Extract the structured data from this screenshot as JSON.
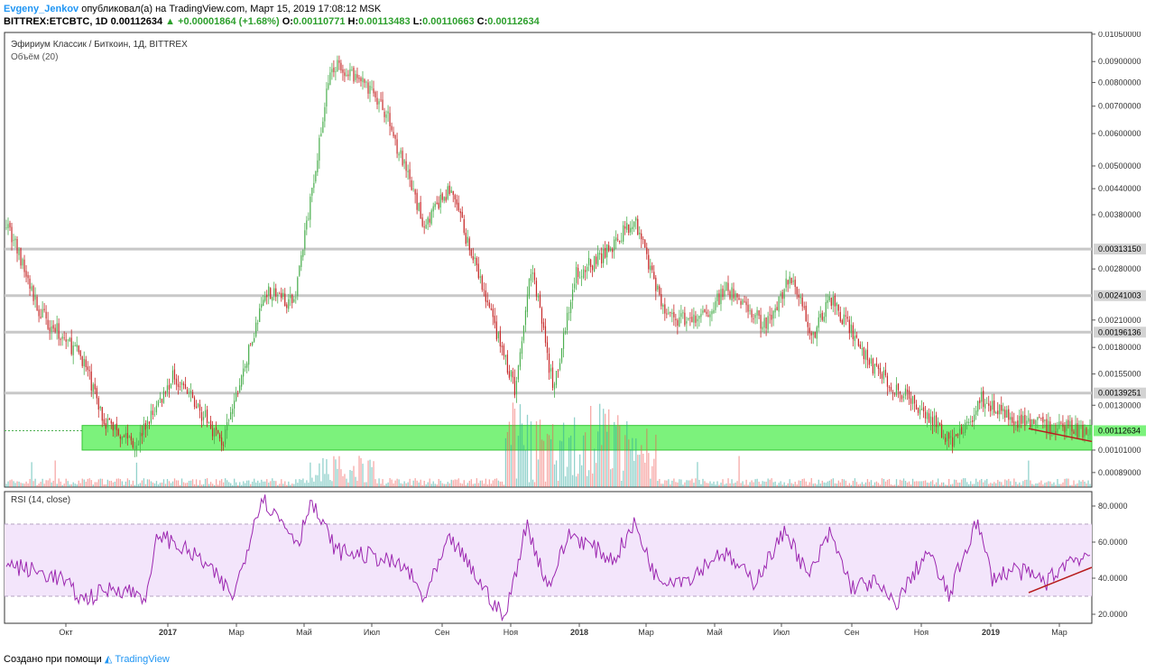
{
  "header": {
    "author": "Evgeny_Jenkov",
    "published_text": "опубликовал(а) на TradingView.com, Март 15, 2019 17:08:12 MSK"
  },
  "ticker": {
    "symbol": "BITTREX:ETCBTC, 1D",
    "last": "0.00112634",
    "change": "▲ +0.00001864 (+1.68%)",
    "o_label": "O:",
    "o": "0.00110771",
    "h_label": "H:",
    "h": "0.00113483",
    "l_label": "L:",
    "l": "0.00110663",
    "c_label": "C:",
    "c": "0.00112634"
  },
  "colors": {
    "up": "#4caf50",
    "down": "#c62828",
    "levels": "#c8c8c8",
    "support_zone": "#7cf27c",
    "rsi": "#9c27b0",
    "rsi_band": "#f3e5fb",
    "trend": "#b71c1c"
  },
  "chart_data": [
    {
      "type": "candlestick",
      "title": "Эфириум Классик / Биткоин, 1Д, BITTREX",
      "subtitle": "Объём (20)",
      "price_axis": [
        "0.01050000",
        "0.00900000",
        "0.00800000",
        "0.00700000",
        "0.00600000",
        "0.00500000",
        "0.00440000",
        "0.00380000",
        "0.00280000",
        "0.00210000",
        "0.00180000",
        "0.00155000",
        "0.00130000",
        "0.00101000",
        "0.00089000"
      ],
      "ylim": [
        0.00082,
        0.0106
      ],
      "scale": "log",
      "horizontal_levels": [
        "0.00313150",
        "0.00241003",
        "0.00196136",
        "0.00139251"
      ],
      "current_price": "0.00112634",
      "support_zone": [
        0.00101,
        0.00116
      ],
      "time_axis": [
        "Окт",
        "2017",
        "Мар",
        "Май",
        "Июл",
        "Сен",
        "Ноя",
        "2018",
        "Мар",
        "Май",
        "Июл",
        "Сен",
        "Ноя",
        "2019",
        "Мар"
      ],
      "price_path": [
        [
          0,
          0.0037
        ],
        [
          0.03,
          0.0022
        ],
        [
          0.07,
          0.0017
        ],
        [
          0.09,
          0.0012
        ],
        [
          0.12,
          0.00105
        ],
        [
          0.155,
          0.00155
        ],
        [
          0.2,
          0.00105
        ],
        [
          0.24,
          0.0025
        ],
        [
          0.265,
          0.0023
        ],
        [
          0.28,
          0.004
        ],
        [
          0.3,
          0.0089
        ],
        [
          0.33,
          0.0079
        ],
        [
          0.35,
          0.0068
        ],
        [
          0.385,
          0.0036
        ],
        [
          0.41,
          0.0044
        ],
        [
          0.43,
          0.003
        ],
        [
          0.47,
          0.0014
        ],
        [
          0.485,
          0.0029
        ],
        [
          0.505,
          0.0014
        ],
        [
          0.525,
          0.0027
        ],
        [
          0.555,
          0.0031
        ],
        [
          0.58,
          0.0037
        ],
        [
          0.61,
          0.0021
        ],
        [
          0.64,
          0.0021
        ],
        [
          0.665,
          0.0025
        ],
        [
          0.7,
          0.00205
        ],
        [
          0.725,
          0.0027
        ],
        [
          0.745,
          0.0019
        ],
        [
          0.76,
          0.0024
        ],
        [
          0.8,
          0.0016
        ],
        [
          0.84,
          0.0013
        ],
        [
          0.875,
          0.00105
        ],
        [
          0.9,
          0.00135
        ],
        [
          0.93,
          0.00118
        ],
        [
          0.97,
          0.00115
        ],
        [
          1.0,
          0.00112
        ]
      ],
      "trendline": "descending"
    },
    {
      "type": "line",
      "title": "RSI (14, close)",
      "y_axis": [
        "80.0000",
        "60.0000",
        "40.0000",
        "20.0000"
      ],
      "ylim": [
        15,
        88
      ],
      "band": [
        30,
        70
      ],
      "rsi_path": [
        [
          0,
          48
        ],
        [
          0.05,
          40
        ],
        [
          0.07,
          28
        ],
        [
          0.1,
          35
        ],
        [
          0.13,
          30
        ],
        [
          0.14,
          65
        ],
        [
          0.18,
          50
        ],
        [
          0.21,
          30
        ],
        [
          0.235,
          85
        ],
        [
          0.27,
          60
        ],
        [
          0.28,
          83
        ],
        [
          0.305,
          55
        ],
        [
          0.34,
          52
        ],
        [
          0.37,
          45
        ],
        [
          0.385,
          28
        ],
        [
          0.41,
          62
        ],
        [
          0.44,
          35
        ],
        [
          0.46,
          17
        ],
        [
          0.48,
          70
        ],
        [
          0.5,
          35
        ],
        [
          0.52,
          65
        ],
        [
          0.56,
          50
        ],
        [
          0.58,
          70
        ],
        [
          0.6,
          40
        ],
        [
          0.63,
          40
        ],
        [
          0.66,
          55
        ],
        [
          0.69,
          38
        ],
        [
          0.72,
          67
        ],
        [
          0.74,
          40
        ],
        [
          0.76,
          65
        ],
        [
          0.78,
          35
        ],
        [
          0.8,
          38
        ],
        [
          0.82,
          25
        ],
        [
          0.85,
          55
        ],
        [
          0.87,
          30
        ],
        [
          0.895,
          72
        ],
        [
          0.91,
          40
        ],
        [
          0.93,
          45
        ],
        [
          0.96,
          38
        ],
        [
          0.98,
          50
        ],
        [
          1.0,
          53
        ]
      ],
      "trendline": "ascending"
    }
  ],
  "footer": {
    "created_with": "Создано при помощи",
    "brand": "TradingView"
  }
}
